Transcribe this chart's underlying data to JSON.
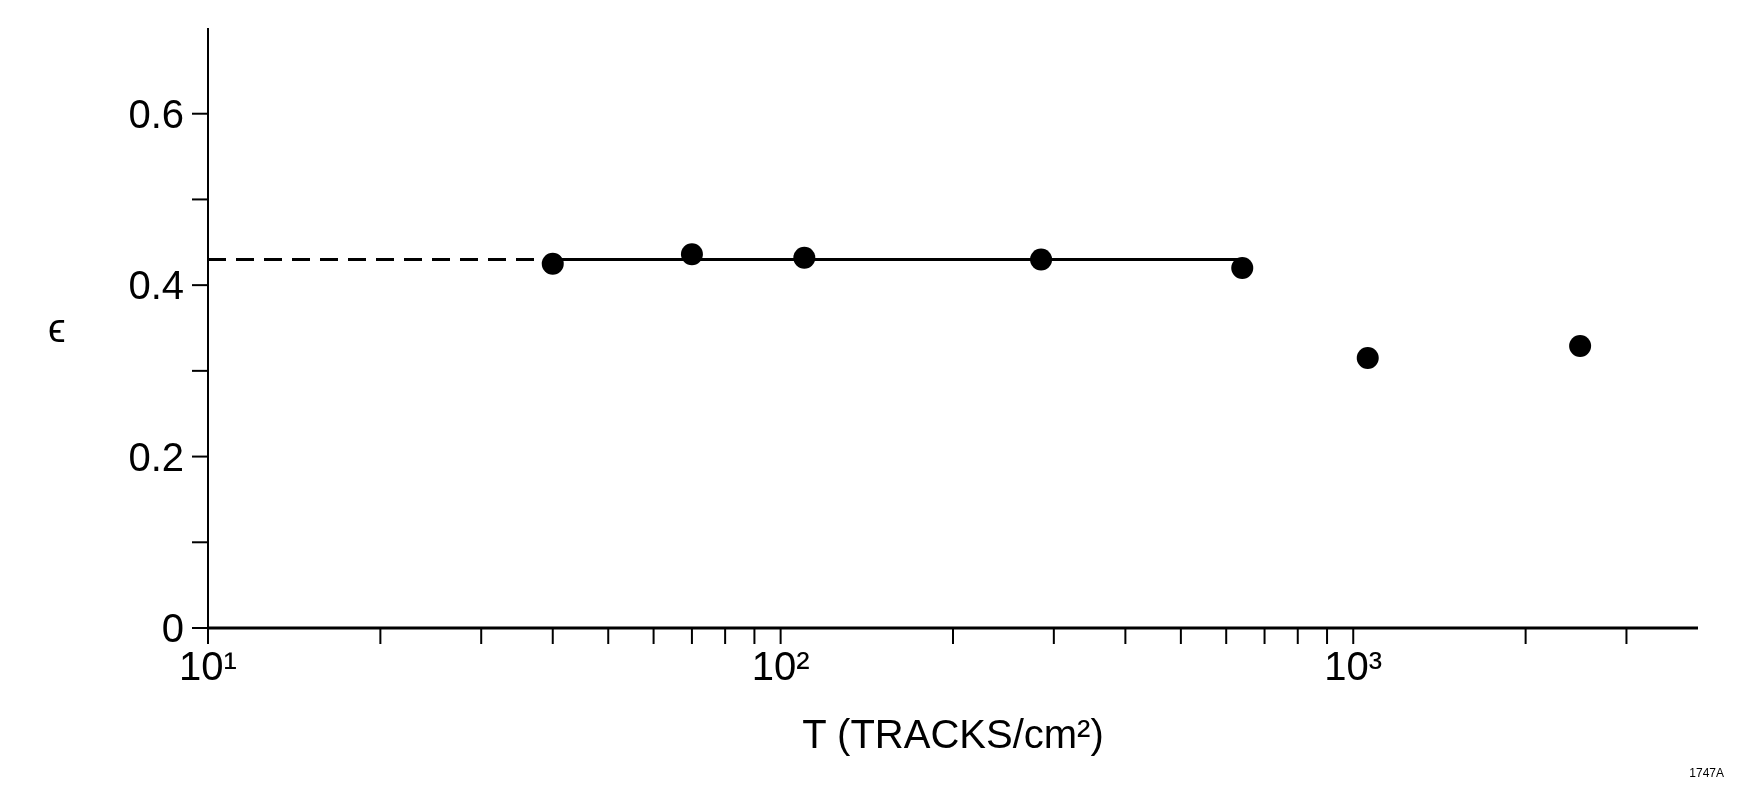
{
  "chart_data": {
    "type": "scatter",
    "xlabel": "T (TRACKS/cm²)",
    "ylabel": "ϵ",
    "log": "x",
    "grid": false,
    "marker": "circle",
    "xlim": [
      10,
      4000
    ],
    "xticks": [
      {
        "value": 10,
        "label": "10¹"
      },
      {
        "value": 20,
        "label": null
      },
      {
        "value": 30,
        "label": null
      },
      {
        "value": 40,
        "label": null
      },
      {
        "value": 50,
        "label": null
      },
      {
        "value": 60,
        "label": null
      },
      {
        "value": 70,
        "label": null
      },
      {
        "value": 80,
        "label": null
      },
      {
        "value": 90,
        "label": null
      },
      {
        "value": 100,
        "label": "10²"
      },
      {
        "value": 200,
        "label": null
      },
      {
        "value": 300,
        "label": null
      },
      {
        "value": 400,
        "label": null
      },
      {
        "value": 500,
        "label": null
      },
      {
        "value": 600,
        "label": null
      },
      {
        "value": 700,
        "label": null
      },
      {
        "value": 800,
        "label": null
      },
      {
        "value": 900,
        "label": null
      },
      {
        "value": 1000,
        "label": "10³"
      },
      {
        "value": 2000,
        "label": null
      },
      {
        "value": 3000,
        "label": null
      }
    ],
    "ylim": [
      0,
      0.7
    ],
    "yticks": [
      0,
      {
        "value": 0.1,
        "label": null
      },
      0.2,
      {
        "value": 0.3,
        "label": null
      },
      0.4,
      {
        "value": 0.5,
        "label": null
      },
      0.6
    ],
    "annotations": [
      "1747A"
    ],
    "series": [
      {
        "type": "scatter",
        "color": "#000000",
        "x": [
          40,
          70,
          110,
          285,
          640,
          1060,
          2490
        ],
        "values": [
          0.425,
          0.436,
          0.432,
          0.43,
          0.42,
          0.315,
          0.329
        ]
      },
      {
        "type": "line",
        "color": "#000000",
        "line_style": "solid",
        "marker": "none",
        "x": [
          40,
          650
        ],
        "values": [
          0.43,
          0.43
        ]
      },
      {
        "type": "line",
        "color": "#000000",
        "line_style": "dashed",
        "marker": "none",
        "x": [
          10,
          40
        ],
        "values": [
          0.43,
          0.43
        ]
      }
    ]
  }
}
